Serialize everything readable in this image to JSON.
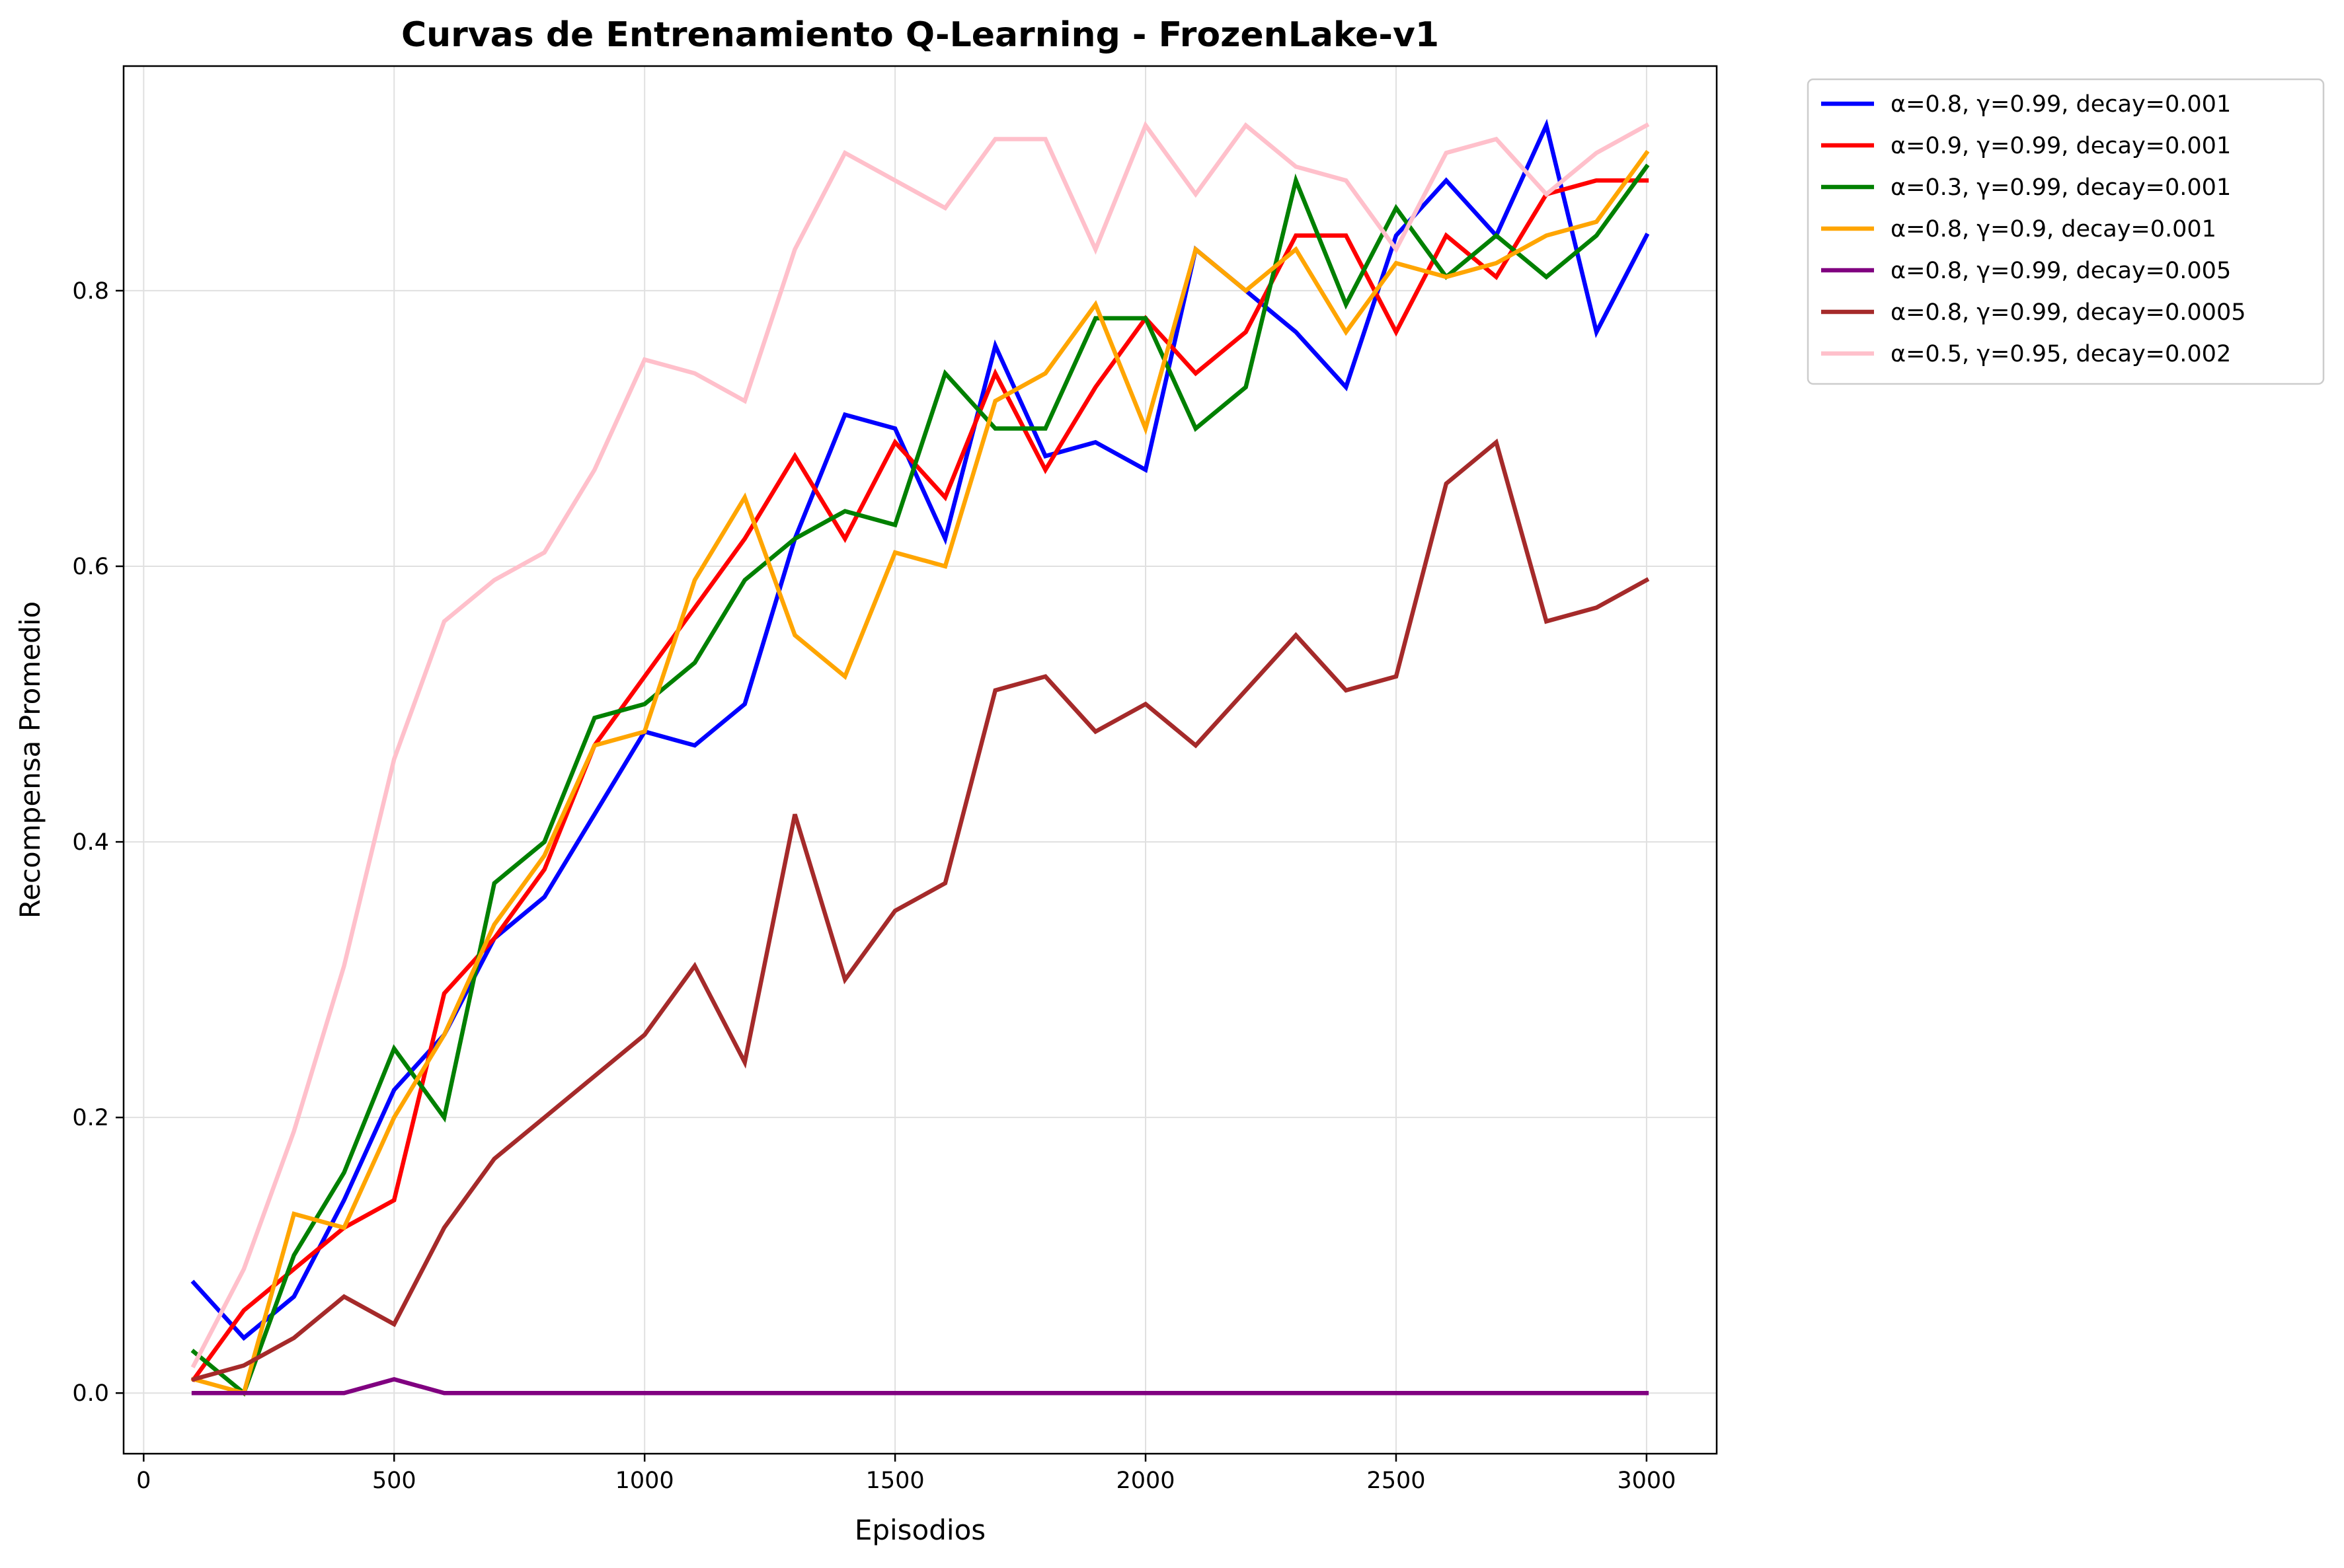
{
  "chart_data": {
    "type": "line",
    "title": "Curvas de Entrenamiento Q-Learning - FrozenLake-v1",
    "xlabel": "Episodios",
    "ylabel": "Recompensa Promedio",
    "xlim": [
      -40,
      3140
    ],
    "ylim": [
      -0.044,
      0.963
    ],
    "xticks": [
      0,
      500,
      1000,
      1500,
      2000,
      2500,
      3000
    ],
    "xtick_labels": [
      "0",
      "500",
      "1000",
      "1500",
      "2000",
      "2500",
      "3000"
    ],
    "yticks": [
      0.0,
      0.2,
      0.4,
      0.6,
      0.8
    ],
    "ytick_labels": [
      "0.0",
      "0.2",
      "0.4",
      "0.6",
      "0.8"
    ],
    "grid": true,
    "legend_position": "outside-top-right",
    "x": [
      100,
      200,
      300,
      400,
      500,
      600,
      700,
      800,
      900,
      1000,
      1100,
      1200,
      1300,
      1400,
      1500,
      1600,
      1700,
      1800,
      1900,
      2000,
      2100,
      2200,
      2300,
      2400,
      2500,
      2600,
      2700,
      2800,
      2900,
      3000
    ],
    "series": [
      {
        "name": "α=0.8, γ=0.99, decay=0.001",
        "color": "#0000ff",
        "values": [
          0.08,
          0.04,
          0.07,
          0.14,
          0.22,
          0.26,
          0.33,
          0.36,
          0.42,
          0.48,
          0.47,
          0.5,
          0.62,
          0.71,
          0.7,
          0.62,
          0.76,
          0.68,
          0.69,
          0.67,
          0.83,
          0.8,
          0.77,
          0.73,
          0.84,
          0.88,
          0.84,
          0.92,
          0.77,
          0.84
        ]
      },
      {
        "name": "α=0.9, γ=0.99, decay=0.001",
        "color": "#ff0000",
        "values": [
          0.01,
          0.06,
          0.09,
          0.12,
          0.14,
          0.29,
          0.33,
          0.38,
          0.47,
          0.52,
          0.57,
          0.62,
          0.68,
          0.62,
          0.69,
          0.65,
          0.74,
          0.67,
          0.73,
          0.78,
          0.74,
          0.77,
          0.84,
          0.84,
          0.77,
          0.84,
          0.81,
          0.87,
          0.88,
          0.88
        ]
      },
      {
        "name": "α=0.3, γ=0.99, decay=0.001",
        "color": "#008000",
        "values": [
          0.03,
          0.0,
          0.1,
          0.16,
          0.25,
          0.2,
          0.37,
          0.4,
          0.49,
          0.5,
          0.53,
          0.59,
          0.62,
          0.64,
          0.63,
          0.74,
          0.7,
          0.7,
          0.78,
          0.78,
          0.7,
          0.73,
          0.88,
          0.79,
          0.86,
          0.81,
          0.84,
          0.81,
          0.84,
          0.89
        ]
      },
      {
        "name": "α=0.8, γ=0.9, decay=0.001",
        "color": "#ffa500",
        "values": [
          0.01,
          0.0,
          0.13,
          0.12,
          0.2,
          0.26,
          0.34,
          0.39,
          0.47,
          0.48,
          0.59,
          0.65,
          0.55,
          0.52,
          0.61,
          0.6,
          0.72,
          0.74,
          0.79,
          0.7,
          0.83,
          0.8,
          0.83,
          0.77,
          0.82,
          0.81,
          0.82,
          0.84,
          0.85,
          0.9
        ]
      },
      {
        "name": "α=0.8, γ=0.99, decay=0.005",
        "color": "#800080",
        "values": [
          0.0,
          0.0,
          0.0,
          0.0,
          0.01,
          0.0,
          0.0,
          0.0,
          0.0,
          0.0,
          0.0,
          0.0,
          0.0,
          0.0,
          0.0,
          0.0,
          0.0,
          0.0,
          0.0,
          0.0,
          0.0,
          0.0,
          0.0,
          0.0,
          0.0,
          0.0,
          0.0,
          0.0,
          0.0,
          0.0
        ]
      },
      {
        "name": "α=0.8, γ=0.99, decay=0.0005",
        "color": "#a52a2a",
        "values": [
          0.01,
          0.02,
          0.04,
          0.07,
          0.05,
          0.12,
          0.17,
          0.2,
          0.23,
          0.26,
          0.31,
          0.24,
          0.42,
          0.3,
          0.35,
          0.37,
          0.51,
          0.52,
          0.48,
          0.5,
          0.47,
          0.51,
          0.55,
          0.51,
          0.52,
          0.66,
          0.69,
          0.56,
          0.57,
          0.59
        ]
      },
      {
        "name": "α=0.5, γ=0.95, decay=0.002",
        "color": "#ffc0cb",
        "values": [
          0.02,
          0.09,
          0.19,
          0.31,
          0.46,
          0.56,
          0.59,
          0.61,
          0.67,
          0.75,
          0.74,
          0.72,
          0.83,
          0.9,
          0.88,
          0.86,
          0.91,
          0.91,
          0.83,
          0.92,
          0.87,
          0.92,
          0.89,
          0.88,
          0.83,
          0.9,
          0.91,
          0.87,
          0.9,
          0.92
        ]
      }
    ]
  }
}
